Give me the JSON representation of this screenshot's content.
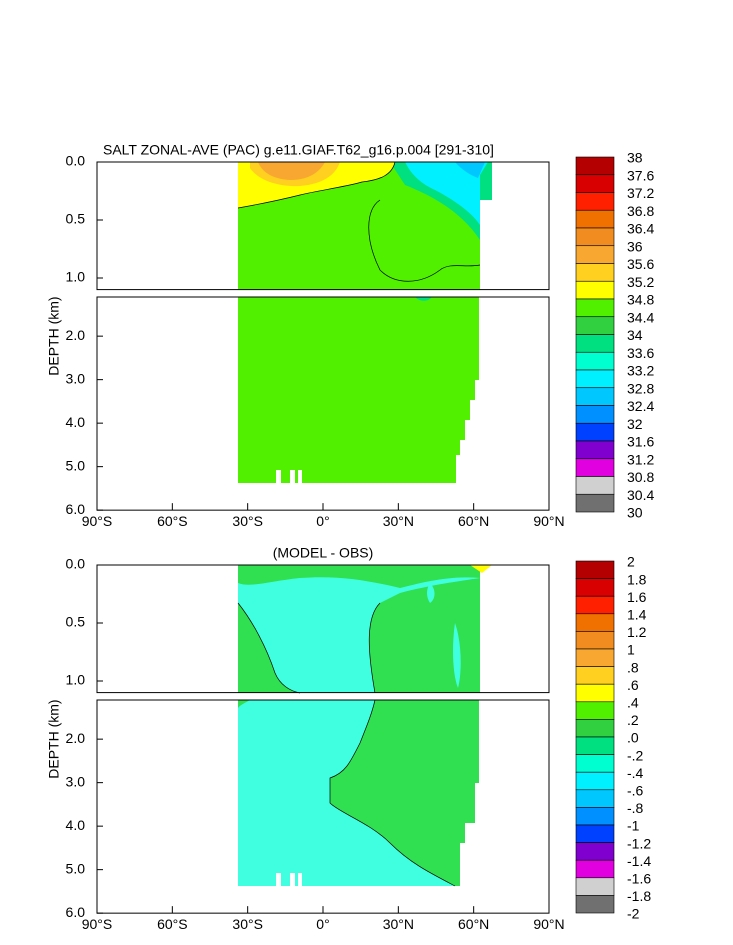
{
  "chart_data": [
    {
      "type": "contour",
      "title": "SALT ZONAL-AVE (PAC) g.e11.GIAF.T62_g16.p.004 [291-310]",
      "ylabel": "DEPTH (km)",
      "xlim": [
        -90,
        90
      ],
      "xticks": [
        {
          "value": -90,
          "label": "90°S"
        },
        {
          "value": -60,
          "label": "60°S"
        },
        {
          "value": -30,
          "label": "30°S"
        },
        {
          "value": 0,
          "label": "0°"
        },
        {
          "value": 30,
          "label": "30°N"
        },
        {
          "value": 60,
          "label": "60°N"
        },
        {
          "value": 90,
          "label": "90°N"
        }
      ],
      "ylim": [
        0,
        6
      ],
      "yticks": [
        {
          "value": 0,
          "label": "0.0"
        },
        {
          "value": 0.5,
          "label": "0.5"
        },
        {
          "value": 1,
          "label": "1.0"
        },
        {
          "value": 2,
          "label": "2.0"
        },
        {
          "value": 3,
          "label": "3.0"
        },
        {
          "value": 4,
          "label": "4.0"
        },
        {
          "value": 5,
          "label": "5.0"
        },
        {
          "value": 6,
          "label": "6.0"
        }
      ],
      "colorbar": {
        "levels": [
          38,
          37.6,
          37.2,
          36.8,
          36.4,
          36,
          35.6,
          35.2,
          34.8,
          34.4,
          34,
          33.6,
          33.2,
          32.8,
          32.4,
          32,
          31.6,
          31.2,
          30.8,
          30.4,
          30
        ],
        "colors": [
          "#b40000",
          "#d80000",
          "#ff2000",
          "#f07000",
          "#f08c20",
          "#f8a830",
          "#ffd020",
          "#ffff00",
          "#50f000",
          "#30d040",
          "#00e080",
          "#00ffd0",
          "#00f0ff",
          "#00c8ff",
          "#0090ff",
          "#0040ff",
          "#8000d0",
          "#e000e0",
          "#d0d0d0",
          "#707070"
        ]
      }
    },
    {
      "type": "contour",
      "title": "(MODEL - OBS)",
      "ylabel": "DEPTH (km)",
      "xlim": [
        -90,
        90
      ],
      "xticks": [
        {
          "value": -90,
          "label": "90°S"
        },
        {
          "value": -60,
          "label": "60°S"
        },
        {
          "value": -30,
          "label": "30°S"
        },
        {
          "value": 0,
          "label": "0°"
        },
        {
          "value": 30,
          "label": "30°N"
        },
        {
          "value": 60,
          "label": "60°N"
        },
        {
          "value": 90,
          "label": "90°N"
        }
      ],
      "ylim": [
        0,
        6
      ],
      "yticks": [
        {
          "value": 0,
          "label": "0.0"
        },
        {
          "value": 0.5,
          "label": "0.5"
        },
        {
          "value": 1,
          "label": "1.0"
        },
        {
          "value": 2,
          "label": "2.0"
        },
        {
          "value": 3,
          "label": "3.0"
        },
        {
          "value": 4,
          "label": "4.0"
        },
        {
          "value": 5,
          "label": "5.0"
        },
        {
          "value": 6,
          "label": "6.0"
        }
      ],
      "colorbar": {
        "levels": [
          2,
          1.8,
          1.6,
          1.4,
          1.2,
          1,
          {
            "value": 0.8,
            "label": ".8"
          },
          {
            "value": 0.6,
            "label": ".6"
          },
          {
            "value": 0.4,
            "label": ".4"
          },
          {
            "value": 0.2,
            "label": ".2"
          },
          {
            "value": 0,
            "label": ".0"
          },
          {
            "value": -0.2,
            "label": "-.2"
          },
          {
            "value": -0.4,
            "label": "-.4"
          },
          {
            "value": -0.6,
            "label": "-.6"
          },
          {
            "value": -0.8,
            "label": "-.8"
          },
          -1,
          -1.2,
          -1.4,
          -1.6,
          -1.8,
          -2
        ],
        "colors": [
          "#b40000",
          "#d80000",
          "#ff2000",
          "#f07000",
          "#f08c20",
          "#f8a830",
          "#ffd020",
          "#ffff00",
          "#50f000",
          "#30d040",
          "#00e080",
          "#00ffd0",
          "#00f0ff",
          "#00c8ff",
          "#0090ff",
          "#0040ff",
          "#8000d0",
          "#e000e0",
          "#d0d0d0",
          "#707070"
        ]
      }
    }
  ]
}
